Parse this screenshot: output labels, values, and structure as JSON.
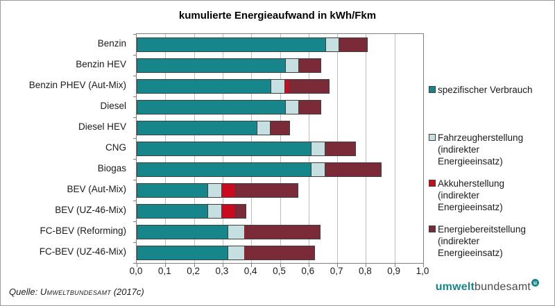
{
  "chart_data": {
    "type": "bar",
    "orientation": "horizontal",
    "stacked": true,
    "title": "kumulierte Energieaufwand in kWh/Fkm",
    "categories": [
      "Benzin",
      "Benzin HEV",
      "Benzin PHEV (Aut-Mix)",
      "Diesel",
      "Diesel HEV",
      "CNG",
      "Biogas",
      "BEV (Aut-Mix)",
      "BEV (UZ-46-Mix)",
      "FC-BEV (Reforming)",
      "FC-BEV (UZ-46-Mix)"
    ],
    "series": [
      {
        "name": "spezifischer Verbrauch",
        "color": "#17868a",
        "values": [
          0.66,
          0.52,
          0.47,
          0.52,
          0.42,
          0.61,
          0.61,
          0.25,
          0.25,
          0.32,
          0.32
        ]
      },
      {
        "name": "Fahrzeugherstellung (indirekter Energieeinsatz)",
        "color": "#c6e0e2",
        "values": [
          0.05,
          0.05,
          0.05,
          0.05,
          0.05,
          0.05,
          0.05,
          0.05,
          0.05,
          0.06,
          0.06
        ]
      },
      {
        "name": "Akkuherstellung (indirekter Energieeinsatz)",
        "color": "#c90b20",
        "values": [
          0,
          0,
          0.02,
          0,
          0,
          0,
          0,
          0.05,
          0.05,
          0.01,
          0.01
        ]
      },
      {
        "name": "Energiebereitstellung (indirekter Energieeinsatz)",
        "color": "#7b2a38",
        "values": [
          0.1,
          0.08,
          0.14,
          0.08,
          0.07,
          0.11,
          0.2,
          0.22,
          0.04,
          0.26,
          0.24
        ]
      }
    ],
    "xlim": [
      0,
      1.0
    ],
    "x_ticks": [
      "0,0",
      "0,1",
      "0,2",
      "0,3",
      "0,4",
      "0,5",
      "0,6",
      "0,7",
      "0,8",
      "0,9",
      "1,0"
    ],
    "grid": true,
    "legend_position": "right"
  },
  "footer": {
    "source_prefix": "Quelle:",
    "source_name": "Umweltbundesamt",
    "source_suffix": "(2017c)",
    "logo_part1": "umwelt",
    "logo_part2": "bundesamt",
    "logo_badge": "u"
  }
}
